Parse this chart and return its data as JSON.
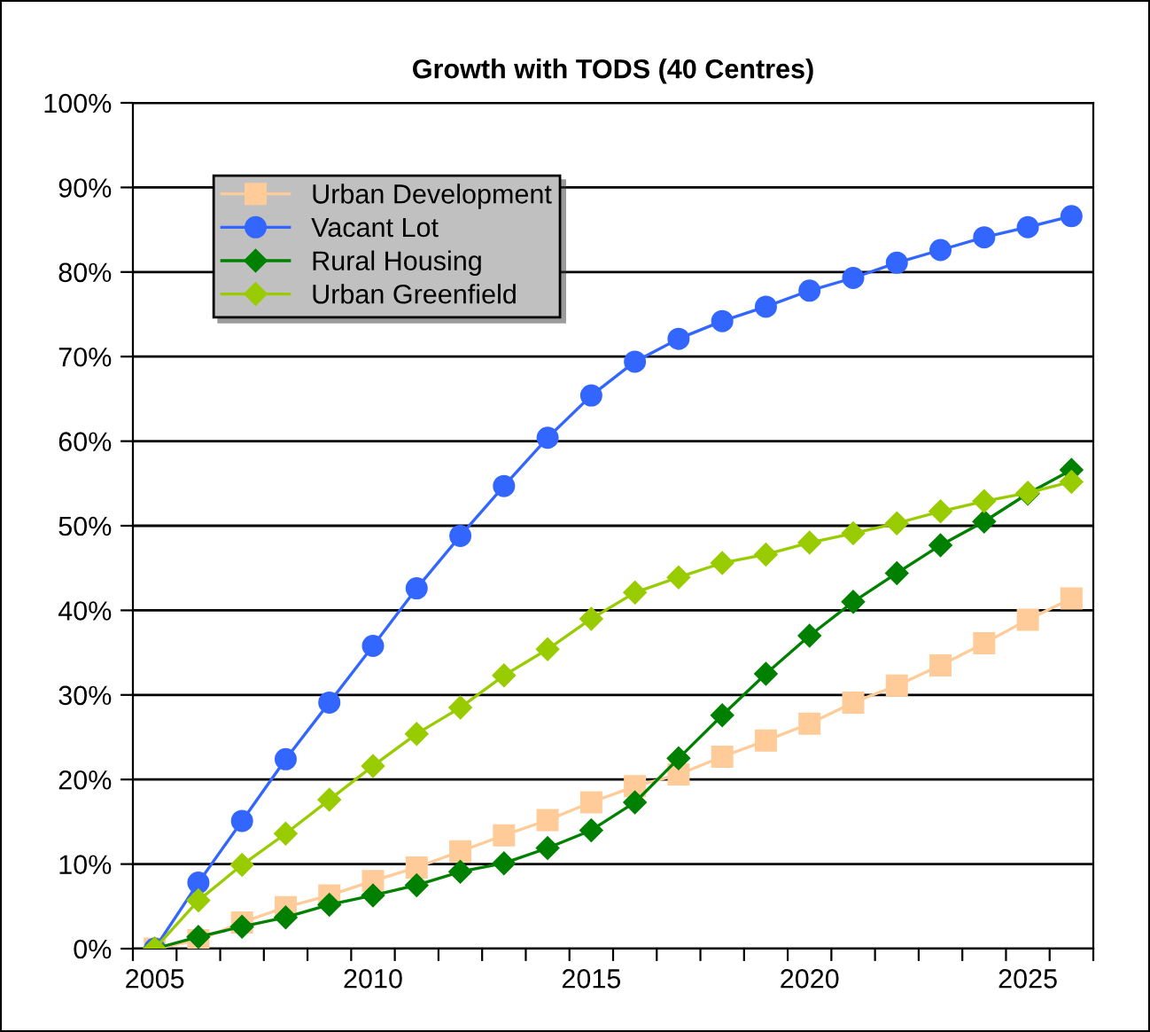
{
  "chart_data": {
    "type": "line",
    "title": "Growth with TODS (40 Centres)",
    "x": [
      2005,
      2006,
      2007,
      2008,
      2009,
      2010,
      2011,
      2012,
      2013,
      2014,
      2015,
      2016,
      2017,
      2018,
      2019,
      2020,
      2021,
      2022,
      2023,
      2024,
      2025,
      2026
    ],
    "series": [
      {
        "name": "Urban Development",
        "color": "#ffcc99",
        "marker": "square",
        "values": [
          0,
          1.0,
          3.1,
          4.9,
          6.3,
          8.0,
          9.6,
          11.5,
          13.4,
          15.2,
          17.3,
          19.2,
          20.6,
          22.7,
          24.6,
          26.6,
          29.1,
          31.1,
          33.5,
          36.1,
          38.9,
          41.4
        ]
      },
      {
        "name": "Vacant Lot",
        "color": "#3366ff",
        "marker": "circle",
        "values": [
          0,
          7.8,
          15.1,
          22.4,
          29.1,
          35.8,
          42.6,
          48.8,
          54.7,
          60.4,
          65.4,
          69.4,
          72.1,
          74.2,
          75.9,
          77.8,
          79.3,
          81.1,
          82.6,
          84.1,
          85.3,
          86.6
        ]
      },
      {
        "name": "Rural Housing",
        "color": "#008000",
        "marker": "diamond",
        "values": [
          0,
          1.4,
          2.6,
          3.7,
          5.2,
          6.3,
          7.5,
          9.1,
          10.1,
          11.9,
          14.0,
          17.3,
          22.5,
          27.6,
          32.5,
          37.0,
          41.0,
          44.4,
          47.7,
          50.5,
          53.8,
          56.6
        ]
      },
      {
        "name": "Urban Greenfield",
        "color": "#99cc00",
        "marker": "diamond",
        "values": [
          0,
          5.7,
          9.9,
          13.6,
          17.6,
          21.6,
          25.4,
          28.5,
          32.3,
          35.4,
          39.0,
          42.1,
          43.9,
          45.6,
          46.6,
          48.0,
          49.1,
          50.3,
          51.7,
          52.9,
          53.9,
          55.2
        ]
      }
    ],
    "xlim": [
      2004.5,
      2026.5
    ],
    "xticks": [
      {
        "value": 2004.5,
        "label": null
      },
      {
        "value": 2005.5,
        "label": null
      },
      {
        "value": 2006.5,
        "label": null
      },
      {
        "value": 2007.5,
        "label": null
      },
      {
        "value": 2008.5,
        "label": null
      },
      {
        "value": 2009.5,
        "label": null
      },
      {
        "value": 2010.5,
        "label": null
      },
      {
        "value": 2011.5,
        "label": null
      },
      {
        "value": 2012.5,
        "label": null
      },
      {
        "value": 2013.5,
        "label": null
      },
      {
        "value": 2014.5,
        "label": null
      },
      {
        "value": 2015.5,
        "label": null
      },
      {
        "value": 2016.5,
        "label": null
      },
      {
        "value": 2017.5,
        "label": null
      },
      {
        "value": 2018.5,
        "label": null
      },
      {
        "value": 2019.5,
        "label": null
      },
      {
        "value": 2020.5,
        "label": null
      },
      {
        "value": 2021.5,
        "label": null
      },
      {
        "value": 2022.5,
        "label": null
      },
      {
        "value": 2023.5,
        "label": null
      },
      {
        "value": 2024.5,
        "label": null
      },
      {
        "value": 2025.5,
        "label": null
      },
      {
        "value": 2026.5,
        "label": null
      },
      2005,
      2010,
      2015,
      2020,
      2025
    ],
    "ylim": [
      0,
      100
    ],
    "yticks": [
      {
        "value": 0,
        "label": "0%"
      },
      {
        "value": 10,
        "label": "10%"
      },
      {
        "value": 20,
        "label": "20%"
      },
      {
        "value": 30,
        "label": "30%"
      },
      {
        "value": 40,
        "label": "40%"
      },
      {
        "value": 50,
        "label": "50%"
      },
      {
        "value": 60,
        "label": "60%"
      },
      {
        "value": 70,
        "label": "70%"
      },
      {
        "value": 80,
        "label": "80%"
      },
      {
        "value": 90,
        "label": "90%"
      },
      {
        "value": 100,
        "label": "100%"
      }
    ],
    "grid": "y",
    "legend": "top left",
    "line_style": "solid"
  }
}
